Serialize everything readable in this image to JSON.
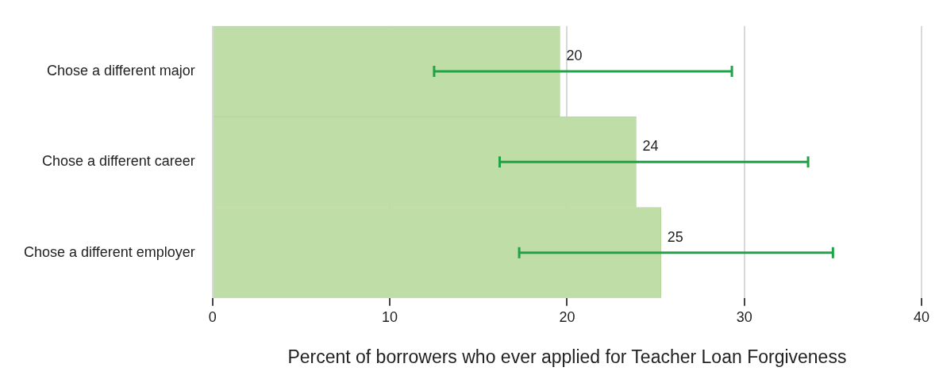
{
  "chart_data": {
    "type": "bar",
    "orientation": "horizontal",
    "xlabel": "Percent of borrowers who ever applied for Teacher Loan Forgiveness",
    "categories": [
      "Chose a different major",
      "Chose a different career",
      "Chose a different employer"
    ],
    "values": [
      19.6,
      23.9,
      25.3
    ],
    "errors": [
      [
        12.5,
        29.3
      ],
      [
        16.2,
        33.6
      ],
      [
        17.3,
        35.0
      ]
    ],
    "value_labels": [
      "20",
      "24",
      "25"
    ],
    "color": "#bfdda6",
    "xlim": [
      0,
      40
    ],
    "xticks": [
      0,
      10,
      20,
      30,
      40
    ],
    "grid": "x",
    "legend": false
  }
}
